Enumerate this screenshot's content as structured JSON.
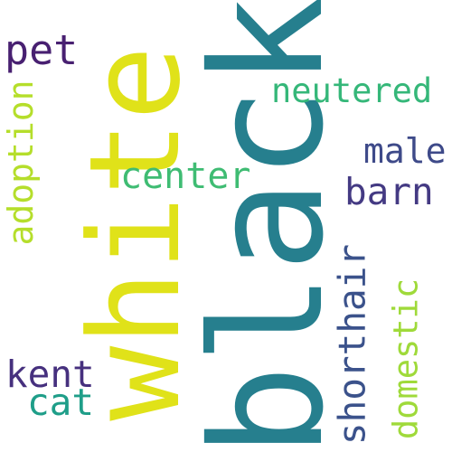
{
  "words": {
    "white": {
      "text": "white",
      "color": "#e0e219"
    },
    "black": {
      "text": "black",
      "color": "#267f8e"
    },
    "pet": {
      "text": "pet",
      "color": "#482071"
    },
    "neutered": {
      "text": "neutered",
      "color": "#35b779"
    },
    "male": {
      "text": "male",
      "color": "#3e4a89"
    },
    "center": {
      "text": "center",
      "color": "#3fbc73"
    },
    "barn": {
      "text": "barn",
      "color": "#443a83"
    },
    "adoption": {
      "text": "adoption",
      "color": "#b5de2b"
    },
    "shorthair": {
      "text": "shorthair",
      "color": "#3b528b"
    },
    "domestic": {
      "text": "domestic",
      "color": "#9fda3a"
    },
    "kent": {
      "text": "kent",
      "color": "#46307e"
    },
    "cat": {
      "text": "cat",
      "color": "#1f9e89"
    }
  }
}
